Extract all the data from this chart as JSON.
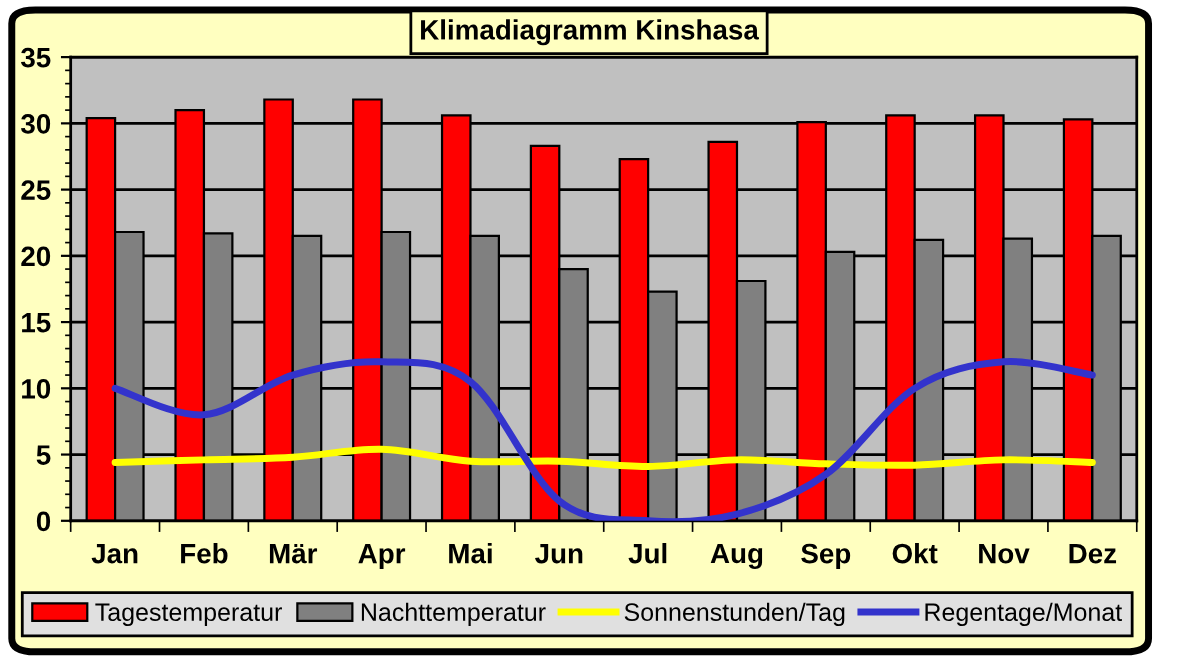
{
  "chart_data": {
    "type": "bar",
    "title": "Klimadiagramm Kinshasa",
    "categories": [
      "Jan",
      "Feb",
      "Mär",
      "Apr",
      "Mai",
      "Jun",
      "Jul",
      "Aug",
      "Sep",
      "Okt",
      "Nov",
      "Dez"
    ],
    "series": [
      {
        "name": "Tagestemperatur",
        "color": "#ff0000",
        "values": [
          30.4,
          31.0,
          31.8,
          31.8,
          30.6,
          28.3,
          27.3,
          28.6,
          30.1,
          30.6,
          30.6,
          30.3
        ]
      },
      {
        "name": "Nachttemperatur",
        "color": "#808080",
        "values": [
          21.8,
          21.7,
          21.5,
          21.8,
          21.5,
          19.0,
          17.3,
          18.1,
          20.3,
          21.2,
          21.3,
          21.5
        ]
      },
      {
        "name": "Sonnenstunden/Tag",
        "type": "line",
        "color": "#ffff00",
        "values": [
          4.4,
          4.6,
          4.8,
          5.4,
          4.5,
          4.5,
          4.1,
          4.6,
          4.3,
          4.2,
          4.6,
          4.4
        ]
      },
      {
        "name": "Regentage/Monat",
        "type": "line",
        "color": "#3333cc",
        "values": [
          10,
          8,
          11,
          12,
          10.5,
          1.5,
          0,
          0.5,
          3.5,
          10,
          12,
          11
        ]
      }
    ],
    "ylim": [
      0,
      35
    ],
    "yticks": [
      0,
      5,
      10,
      15,
      20,
      25,
      30,
      35
    ],
    "grid": "y",
    "legend": "bottom"
  }
}
